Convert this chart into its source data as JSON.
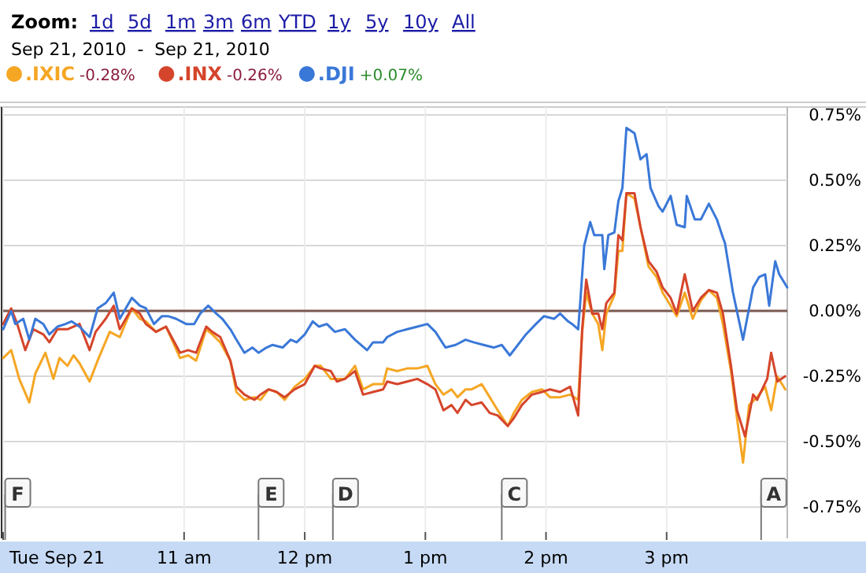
{
  "chart_data": {
    "type": "line",
    "title": "Sep 21, 2010  -  Sep 21, 2010",
    "annotations": [
      "Zoom:",
      "1d",
      "5d",
      "1m",
      "3m",
      "6m",
      "YTD",
      "1y",
      "5y",
      "10y",
      "All"
    ],
    "xlim": [
      "2010-09-21T09:30",
      "2010-09-21T16:00"
    ],
    "ylim": [
      -0.87,
      0.78
    ],
    "xticks": [
      {
        "value": "2010-09-21T09:30",
        "label": "Tue Sep 21"
      },
      {
        "value": "2010-09-21T11:00",
        "label": "11 am"
      },
      {
        "value": "2010-09-21T12:00",
        "label": "12 pm"
      },
      {
        "value": "2010-09-21T13:00",
        "label": "1 pm"
      },
      {
        "value": "2010-09-21T14:00",
        "label": "2 pm"
      },
      {
        "value": "2010-09-21T15:00",
        "label": "3 pm"
      }
    ],
    "yticks": [
      {
        "value": -0.75,
        "label": "-0.75%"
      },
      {
        "value": -0.5,
        "label": "-0.50%"
      },
      {
        "value": -0.25,
        "label": "-0.25%"
      },
      {
        "value": 0,
        "label": "0.00%"
      },
      {
        "value": 0.25,
        "label": "0.25%"
      },
      {
        "value": 0.5,
        "label": "0.50%"
      },
      {
        "value": 0.75,
        "label": "0.75%"
      }
    ],
    "grid": true,
    "legend": "top left",
    "ref_lines": [
      {
        "axis": "y",
        "value": 0,
        "color": "#7a5a50"
      },
      {
        "axis": "x",
        "value": "2010-09-21T09:31",
        "label": "F",
        "color": "#777777"
      },
      {
        "axis": "x",
        "value": "2010-09-21T11:37",
        "label": "E",
        "color": "#777777"
      },
      {
        "axis": "x",
        "value": "2010-09-21T12:14",
        "label": "D",
        "color": "#777777"
      },
      {
        "axis": "x",
        "value": "2010-09-21T13:38",
        "label": "C",
        "color": "#777777"
      },
      {
        "axis": "x",
        "value": "2010-09-21T15:47",
        "label": "A",
        "color": "#777777"
      }
    ],
    "series": [
      {
        "name": ".IXIC -0.28%",
        "color": "#f5a623",
        "x": [
          "2010-09-21T09:30",
          "2010-09-21T09:34",
          "2010-09-21T09:38",
          "2010-09-21T09:43",
          "2010-09-21T09:46",
          "2010-09-21T09:51",
          "2010-09-21T09:55",
          "2010-09-21T09:58",
          "2010-09-21T10:02",
          "2010-09-21T10:05",
          "2010-09-21T10:08",
          "2010-09-21T10:13",
          "2010-09-21T10:17",
          "2010-09-21T10:23",
          "2010-09-21T10:28",
          "2010-09-21T10:34",
          "2010-09-21T10:38",
          "2010-09-21T10:41",
          "2010-09-21T10:46",
          "2010-09-21T10:51",
          "2010-09-21T10:58",
          "2010-09-21T11:02",
          "2010-09-21T11:06",
          "2010-09-21T11:11",
          "2010-09-21T11:14",
          "2010-09-21T11:18",
          "2010-09-21T11:23",
          "2010-09-21T11:26",
          "2010-09-21T11:30",
          "2010-09-21T11:35",
          "2010-09-21T11:38",
          "2010-09-21T11:42",
          "2010-09-21T11:46",
          "2010-09-21T11:50",
          "2010-09-21T11:55",
          "2010-09-21T12:00",
          "2010-09-21T12:05",
          "2010-09-21T12:08",
          "2010-09-21T12:13",
          "2010-09-21T12:16",
          "2010-09-21T12:20",
          "2010-09-21T12:25",
          "2010-09-21T12:29",
          "2010-09-21T12:34",
          "2010-09-21T12:39",
          "2010-09-21T12:41",
          "2010-09-21T12:46",
          "2010-09-21T12:51",
          "2010-09-21T12:56",
          "2010-09-21T13:01",
          "2010-09-21T13:05",
          "2010-09-21T13:09",
          "2010-09-21T13:13",
          "2010-09-21T13:16",
          "2010-09-21T13:20",
          "2010-09-21T13:23",
          "2010-09-21T13:28",
          "2010-09-21T13:32",
          "2010-09-21T13:36",
          "2010-09-21T13:41",
          "2010-09-21T13:44",
          "2010-09-21T13:48",
          "2010-09-21T13:53",
          "2010-09-21T13:58",
          "2010-09-21T14:02",
          "2010-09-21T14:07",
          "2010-09-21T14:12",
          "2010-09-21T14:16",
          "2010-09-21T14:18",
          "2010-09-21T14:20",
          "2010-09-21T14:23",
          "2010-09-21T14:26",
          "2010-09-21T14:28",
          "2010-09-21T14:30",
          "2010-09-21T14:34",
          "2010-09-21T14:36",
          "2010-09-21T14:38",
          "2010-09-21T14:40",
          "2010-09-21T14:44",
          "2010-09-21T14:47",
          "2010-09-21T14:51",
          "2010-09-21T14:55",
          "2010-09-21T14:58",
          "2010-09-21T15:02",
          "2010-09-21T15:05",
          "2010-09-21T15:09",
          "2010-09-21T15:13",
          "2010-09-21T15:17",
          "2010-09-21T15:21",
          "2010-09-21T15:25",
          "2010-09-21T15:28",
          "2010-09-21T15:32",
          "2010-09-21T15:35",
          "2010-09-21T15:38",
          "2010-09-21T15:41",
          "2010-09-21T15:45",
          "2010-09-21T15:49",
          "2010-09-21T15:52",
          "2010-09-21T15:55",
          "2010-09-21T15:59"
        ],
        "values": [
          -0.18,
          -0.15,
          -0.26,
          -0.35,
          -0.24,
          -0.16,
          -0.26,
          -0.18,
          -0.21,
          -0.17,
          -0.2,
          -0.27,
          -0.19,
          -0.08,
          -0.1,
          0.01,
          -0.03,
          -0.04,
          -0.08,
          -0.06,
          -0.18,
          -0.17,
          -0.19,
          -0.07,
          -0.09,
          -0.12,
          -0.19,
          -0.31,
          -0.34,
          -0.33,
          -0.34,
          -0.3,
          -0.31,
          -0.34,
          -0.29,
          -0.26,
          -0.21,
          -0.21,
          -0.26,
          -0.26,
          -0.26,
          -0.21,
          -0.3,
          -0.28,
          -0.28,
          -0.22,
          -0.23,
          -0.22,
          -0.22,
          -0.21,
          -0.28,
          -0.32,
          -0.3,
          -0.33,
          -0.3,
          -0.3,
          -0.28,
          -0.33,
          -0.38,
          -0.44,
          -0.39,
          -0.34,
          -0.31,
          -0.3,
          -0.33,
          -0.33,
          -0.32,
          -0.34,
          -0.08,
          0.07,
          -0.01,
          -0.05,
          -0.15,
          -0.01,
          0.06,
          0.23,
          0.23,
          0.45,
          0.43,
          0.32,
          0.17,
          0.13,
          0.07,
          0.02,
          -0.02,
          0.07,
          -0.03,
          0.04,
          0.08,
          0.05,
          -0.05,
          -0.23,
          -0.41,
          -0.58,
          -0.36,
          -0.33,
          -0.29,
          -0.38,
          -0.25,
          -0.3
        ]
      },
      {
        "name": ".INX -0.26%",
        "color": "#d5452b",
        "x": [
          "2010-09-21T09:30",
          "2010-09-21T09:34",
          "2010-09-21T09:37",
          "2010-09-21T09:41",
          "2010-09-21T09:45",
          "2010-09-21T09:50",
          "2010-09-21T09:53",
          "2010-09-21T09:57",
          "2010-09-21T10:02",
          "2010-09-21T10:08",
          "2010-09-21T10:13",
          "2010-09-21T10:16",
          "2010-09-21T10:21",
          "2010-09-21T10:25",
          "2010-09-21T10:28",
          "2010-09-21T10:34",
          "2010-09-21T10:38",
          "2010-09-21T10:41",
          "2010-09-21T10:46",
          "2010-09-21T10:51",
          "2010-09-21T10:58",
          "2010-09-21T11:02",
          "2010-09-21T11:06",
          "2010-09-21T11:11",
          "2010-09-21T11:14",
          "2010-09-21T11:18",
          "2010-09-21T11:23",
          "2010-09-21T11:26",
          "2010-09-21T11:30",
          "2010-09-21T11:35",
          "2010-09-21T11:38",
          "2010-09-21T11:42",
          "2010-09-21T11:46",
          "2010-09-21T11:50",
          "2010-09-21T11:55",
          "2010-09-21T12:00",
          "2010-09-21T12:05",
          "2010-09-21T12:08",
          "2010-09-21T12:13",
          "2010-09-21T12:16",
          "2010-09-21T12:20",
          "2010-09-21T12:25",
          "2010-09-21T12:29",
          "2010-09-21T12:34",
          "2010-09-21T12:39",
          "2010-09-21T12:41",
          "2010-09-21T12:46",
          "2010-09-21T12:51",
          "2010-09-21T12:56",
          "2010-09-21T13:01",
          "2010-09-21T13:05",
          "2010-09-21T13:09",
          "2010-09-21T13:13",
          "2010-09-21T13:16",
          "2010-09-21T13:20",
          "2010-09-21T13:23",
          "2010-09-21T13:28",
          "2010-09-21T13:32",
          "2010-09-21T13:36",
          "2010-09-21T13:41",
          "2010-09-21T13:44",
          "2010-09-21T13:48",
          "2010-09-21T13:53",
          "2010-09-21T13:58",
          "2010-09-21T14:02",
          "2010-09-21T14:07",
          "2010-09-21T14:12",
          "2010-09-21T14:16",
          "2010-09-21T14:18",
          "2010-09-21T14:20",
          "2010-09-21T14:23",
          "2010-09-21T14:26",
          "2010-09-21T14:28",
          "2010-09-21T14:30",
          "2010-09-21T14:34",
          "2010-09-21T14:36",
          "2010-09-21T14:38",
          "2010-09-21T14:40",
          "2010-09-21T14:44",
          "2010-09-21T14:47",
          "2010-09-21T14:51",
          "2010-09-21T14:55",
          "2010-09-21T14:58",
          "2010-09-21T15:02",
          "2010-09-21T15:05",
          "2010-09-21T15:09",
          "2010-09-21T15:13",
          "2010-09-21T15:17",
          "2010-09-21T15:21",
          "2010-09-21T15:25",
          "2010-09-21T15:28",
          "2010-09-21T15:32",
          "2010-09-21T15:35",
          "2010-09-21T15:39",
          "2010-09-21T15:43",
          "2010-09-21T15:45",
          "2010-09-21T15:50",
          "2010-09-21T15:52",
          "2010-09-21T15:55",
          "2010-09-21T15:59"
        ],
        "values": [
          -0.05,
          0.01,
          -0.05,
          -0.15,
          -0.07,
          -0.09,
          -0.12,
          -0.07,
          -0.07,
          -0.05,
          -0.15,
          -0.08,
          -0.03,
          0.02,
          -0.07,
          0.01,
          -0.01,
          -0.05,
          -0.08,
          -0.06,
          -0.16,
          -0.15,
          -0.16,
          -0.06,
          -0.08,
          -0.1,
          -0.19,
          -0.29,
          -0.32,
          -0.34,
          -0.32,
          -0.3,
          -0.31,
          -0.33,
          -0.3,
          -0.28,
          -0.21,
          -0.22,
          -0.23,
          -0.27,
          -0.26,
          -0.23,
          -0.32,
          -0.31,
          -0.3,
          -0.27,
          -0.28,
          -0.27,
          -0.26,
          -0.28,
          -0.3,
          -0.38,
          -0.36,
          -0.39,
          -0.34,
          -0.36,
          -0.35,
          -0.39,
          -0.4,
          -0.44,
          -0.41,
          -0.36,
          -0.32,
          -0.31,
          -0.3,
          -0.31,
          -0.29,
          -0.4,
          -0.07,
          0.12,
          -0.01,
          -0.01,
          -0.07,
          0.03,
          0.07,
          0.29,
          0.27,
          0.45,
          0.45,
          0.32,
          0.19,
          0.15,
          0.09,
          0.05,
          -0.01,
          0.14,
          0,
          0.05,
          0.08,
          0.07,
          -0.01,
          -0.21,
          -0.38,
          -0.48,
          -0.32,
          -0.34,
          -0.26,
          -0.16,
          -0.27,
          -0.25
        ]
      },
      {
        "name": ".DJI +0.07%",
        "color": "#3a78d8",
        "x": [
          "2010-09-21T09:30",
          "2010-09-21T09:34",
          "2010-09-21T09:36",
          "2010-09-21T09:40",
          "2010-09-21T09:43",
          "2010-09-21T09:46",
          "2010-09-21T09:50",
          "2010-09-21T09:53",
          "2010-09-21T09:57",
          "2010-09-21T10:01",
          "2010-09-21T10:04",
          "2010-09-21T10:08",
          "2010-09-21T10:13",
          "2010-09-21T10:17",
          "2010-09-21T10:21",
          "2010-09-21T10:25",
          "2010-09-21T10:28",
          "2010-09-21T10:34",
          "2010-09-21T10:38",
          "2010-09-21T10:41",
          "2010-09-21T10:45",
          "2010-09-21T10:49",
          "2010-09-21T10:52",
          "2010-09-21T10:56",
          "2010-09-21T11:01",
          "2010-09-21T11:05",
          "2010-09-21T11:08",
          "2010-09-21T11:12",
          "2010-09-21T11:16",
          "2010-09-21T11:19",
          "2010-09-21T11:23",
          "2010-09-21T11:26",
          "2010-09-21T11:30",
          "2010-09-21T11:34",
          "2010-09-21T11:37",
          "2010-09-21T11:41",
          "2010-09-21T11:44",
          "2010-09-21T11:49",
          "2010-09-21T11:53",
          "2010-09-21T11:56",
          "2010-09-21T12:00",
          "2010-09-21T12:04",
          "2010-09-21T12:07",
          "2010-09-21T12:11",
          "2010-09-21T12:15",
          "2010-09-21T12:20",
          "2010-09-21T12:25",
          "2010-09-21T12:31",
          "2010-09-21T12:34",
          "2010-09-21T12:39",
          "2010-09-21T12:41",
          "2010-09-21T12:46",
          "2010-09-21T12:51",
          "2010-09-21T12:56",
          "2010-09-21T13:01",
          "2010-09-21T13:05",
          "2010-09-21T13:10",
          "2010-09-21T13:15",
          "2010-09-21T13:20",
          "2010-09-21T13:24",
          "2010-09-21T13:29",
          "2010-09-21T13:34",
          "2010-09-21T13:38",
          "2010-09-21T13:42",
          "2010-09-21T13:46",
          "2010-09-21T13:50",
          "2010-09-21T13:55",
          "2010-09-21T13:59",
          "2010-09-21T14:04",
          "2010-09-21T14:07",
          "2010-09-21T14:11",
          "2010-09-21T14:13",
          "2010-09-21T14:16",
          "2010-09-21T14:17",
          "2010-09-21T14:19",
          "2010-09-21T14:22",
          "2010-09-21T14:24",
          "2010-09-21T14:28",
          "2010-09-21T14:29",
          "2010-09-21T14:31",
          "2010-09-21T14:34",
          "2010-09-21T14:36",
          "2010-09-21T14:38",
          "2010-09-21T14:40",
          "2010-09-21T14:44",
          "2010-09-21T14:47",
          "2010-09-21T14:50",
          "2010-09-21T14:52",
          "2010-09-21T14:56",
          "2010-09-21T14:58",
          "2010-09-21T15:02",
          "2010-09-21T15:05",
          "2010-09-21T15:09",
          "2010-09-21T15:10",
          "2010-09-21T15:14",
          "2010-09-21T15:17",
          "2010-09-21T15:21",
          "2010-09-21T15:25",
          "2010-09-21T15:28",
          "2010-09-21T15:29",
          "2010-09-21T15:33",
          "2010-09-21T15:38",
          "2010-09-21T15:43",
          "2010-09-21T15:46",
          "2010-09-21T15:49",
          "2010-09-21T15:51",
          "2010-09-21T15:54",
          "2010-09-21T15:56",
          "2010-09-21T16:00"
        ],
        "values": [
          -0.07,
          0,
          -0.05,
          -0.03,
          -0.11,
          -0.03,
          -0.05,
          -0.09,
          -0.06,
          -0.05,
          -0.04,
          -0.06,
          -0.1,
          0.01,
          0.03,
          0.07,
          -0.03,
          0.05,
          0.02,
          0.01,
          -0.05,
          -0.02,
          -0.02,
          -0.03,
          -0.05,
          -0.05,
          -0.01,
          0.02,
          -0.01,
          -0.03,
          -0.07,
          -0.11,
          -0.16,
          -0.14,
          -0.16,
          -0.14,
          -0.13,
          -0.14,
          -0.11,
          -0.12,
          -0.09,
          -0.04,
          -0.06,
          -0.05,
          -0.08,
          -0.07,
          -0.11,
          -0.15,
          -0.12,
          -0.12,
          -0.1,
          -0.08,
          -0.07,
          -0.06,
          -0.05,
          -0.08,
          -0.14,
          -0.13,
          -0.11,
          -0.12,
          -0.13,
          -0.14,
          -0.13,
          -0.17,
          -0.13,
          -0.09,
          -0.05,
          -0.02,
          -0.03,
          -0.01,
          -0.04,
          -0.05,
          -0.07,
          0.03,
          0.25,
          0.34,
          0.29,
          0.29,
          0.16,
          0.29,
          0.3,
          0.42,
          0.47,
          0.7,
          0.68,
          0.58,
          0.6,
          0.47,
          0.4,
          0.38,
          0.44,
          0.33,
          0.32,
          0.44,
          0.35,
          0.35,
          0.41,
          0.35,
          0.28,
          0.26,
          0.07,
          -0.11,
          0.09,
          0.13,
          0.14,
          0.02,
          0.19,
          0.14,
          0.09
        ]
      }
    ]
  }
}
